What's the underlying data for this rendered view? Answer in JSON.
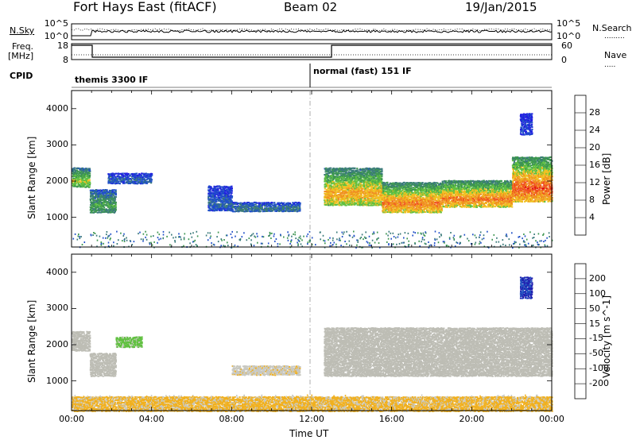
{
  "header": {
    "station": "Fort Hays East (fitACF)",
    "beam": "Beam 02",
    "date": "19/Jan/2015"
  },
  "top_panels": {
    "nsky_label": "N.Sky",
    "nsky_ticks": [
      "10^5",
      "10^0"
    ],
    "nsearch_label": "N.Search",
    "nsearch_ticks": [
      "10^5",
      "10^0"
    ],
    "freq_label_1": "Freq.",
    "freq_label_2": "[MHz]",
    "freq_ticks": [
      "18",
      "8"
    ],
    "nave_label": "Nave",
    "nave_ticks": [
      "60",
      "0"
    ],
    "cpid_label": "CPID",
    "cpid_modes": [
      "themis 3300 IF",
      "normal (fast) 151 IF"
    ]
  },
  "colors": {
    "power_scale": [
      "#2020e0",
      "#2050c8",
      "#3a7a7a",
      "#3c9650",
      "#60c040",
      "#f0c020",
      "#f09020",
      "#f05020",
      "#e01010"
    ],
    "velocity_scale": [
      "#e01010",
      "#f05020",
      "#f08020",
      "#f0b020",
      "#c8c8c0",
      "#c8c8c0",
      "#60c040",
      "#3a8a50",
      "#2050c0",
      "#2020b0"
    ],
    "ground_scatter": "#bdbdb5"
  },
  "chart_data": [
    {
      "type": "heatmap",
      "panel": "power",
      "xlabel": "Time UT",
      "ylabel": "Slant Range [km]",
      "x_ticks": [
        "00:00",
        "04:00",
        "08:00",
        "12:00",
        "16:00",
        "20:00",
        "00:00"
      ],
      "x_range_hours": [
        0,
        24
      ],
      "ylim": [
        180,
        4500
      ],
      "y_ticks": [
        1000,
        2000,
        3000,
        4000
      ],
      "colorbar_label": "Power [dB]",
      "colorbar_ticks": [
        4,
        8,
        12,
        16,
        20,
        24,
        28
      ],
      "colorbar_range": [
        0,
        30
      ],
      "regions": [
        {
          "t0": 0.0,
          "t1": 0.9,
          "r0": 1850,
          "r1": 2400,
          "value": 16
        },
        {
          "t0": 0.9,
          "t1": 2.2,
          "r0": 1150,
          "r1": 1800,
          "value": 12
        },
        {
          "t0": 1.8,
          "t1": 4.0,
          "r0": 1950,
          "r1": 2250,
          "value": 6
        },
        {
          "t0": 6.8,
          "t1": 8.0,
          "r0": 1200,
          "r1": 1900,
          "value": 6
        },
        {
          "t0": 8.0,
          "t1": 11.4,
          "r0": 1180,
          "r1": 1450,
          "value": 8
        },
        {
          "t0": 12.6,
          "t1": 15.5,
          "r0": 1350,
          "r1": 2400,
          "value": 20
        },
        {
          "t0": 15.5,
          "t1": 18.5,
          "r0": 1150,
          "r1": 2000,
          "value": 22
        },
        {
          "t0": 18.5,
          "t1": 22.0,
          "r0": 1300,
          "r1": 2050,
          "value": 22
        },
        {
          "t0": 22.0,
          "t1": 24.0,
          "r0": 1450,
          "r1": 2700,
          "value": 24
        },
        {
          "t0": 22.4,
          "t1": 23.0,
          "r0": 3300,
          "r1": 3900,
          "value": 4
        }
      ]
    },
    {
      "type": "heatmap",
      "panel": "velocity",
      "xlabel": "Time UT",
      "ylabel": "Slant Range [km]",
      "x_ticks": [
        "00:00",
        "04:00",
        "08:00",
        "12:00",
        "16:00",
        "20:00",
        "00:00"
      ],
      "x_range_hours": [
        0,
        24
      ],
      "ylim": [
        180,
        4500
      ],
      "y_ticks": [
        1000,
        2000,
        3000,
        4000
      ],
      "colorbar_label": "Velocity [m s^-1]",
      "colorbar_ticks": [
        200,
        100,
        50,
        15,
        -15,
        -50,
        -100,
        -200
      ],
      "colorbar_range": [
        -250,
        250
      ],
      "regions": [
        {
          "t0": 0.0,
          "t1": 0.9,
          "r0": 1850,
          "r1": 2400,
          "value": 0
        },
        {
          "t0": 0.9,
          "t1": 2.2,
          "r0": 1150,
          "r1": 1800,
          "value": 0
        },
        {
          "t0": 2.2,
          "t1": 3.5,
          "r0": 1950,
          "r1": 2250,
          "value": 60
        },
        {
          "t0": 8.0,
          "t1": 11.4,
          "r0": 1180,
          "r1": 1450,
          "value": -40
        },
        {
          "t0": 12.6,
          "t1": 24.0,
          "r0": 1150,
          "r1": 2500,
          "value": 0
        },
        {
          "t0": 22.4,
          "t1": 23.0,
          "r0": 3300,
          "r1": 3900,
          "value": 200
        },
        {
          "t0": 0.0,
          "t1": 24.0,
          "r0": 180,
          "r1": 600,
          "value": -60
        }
      ]
    }
  ]
}
